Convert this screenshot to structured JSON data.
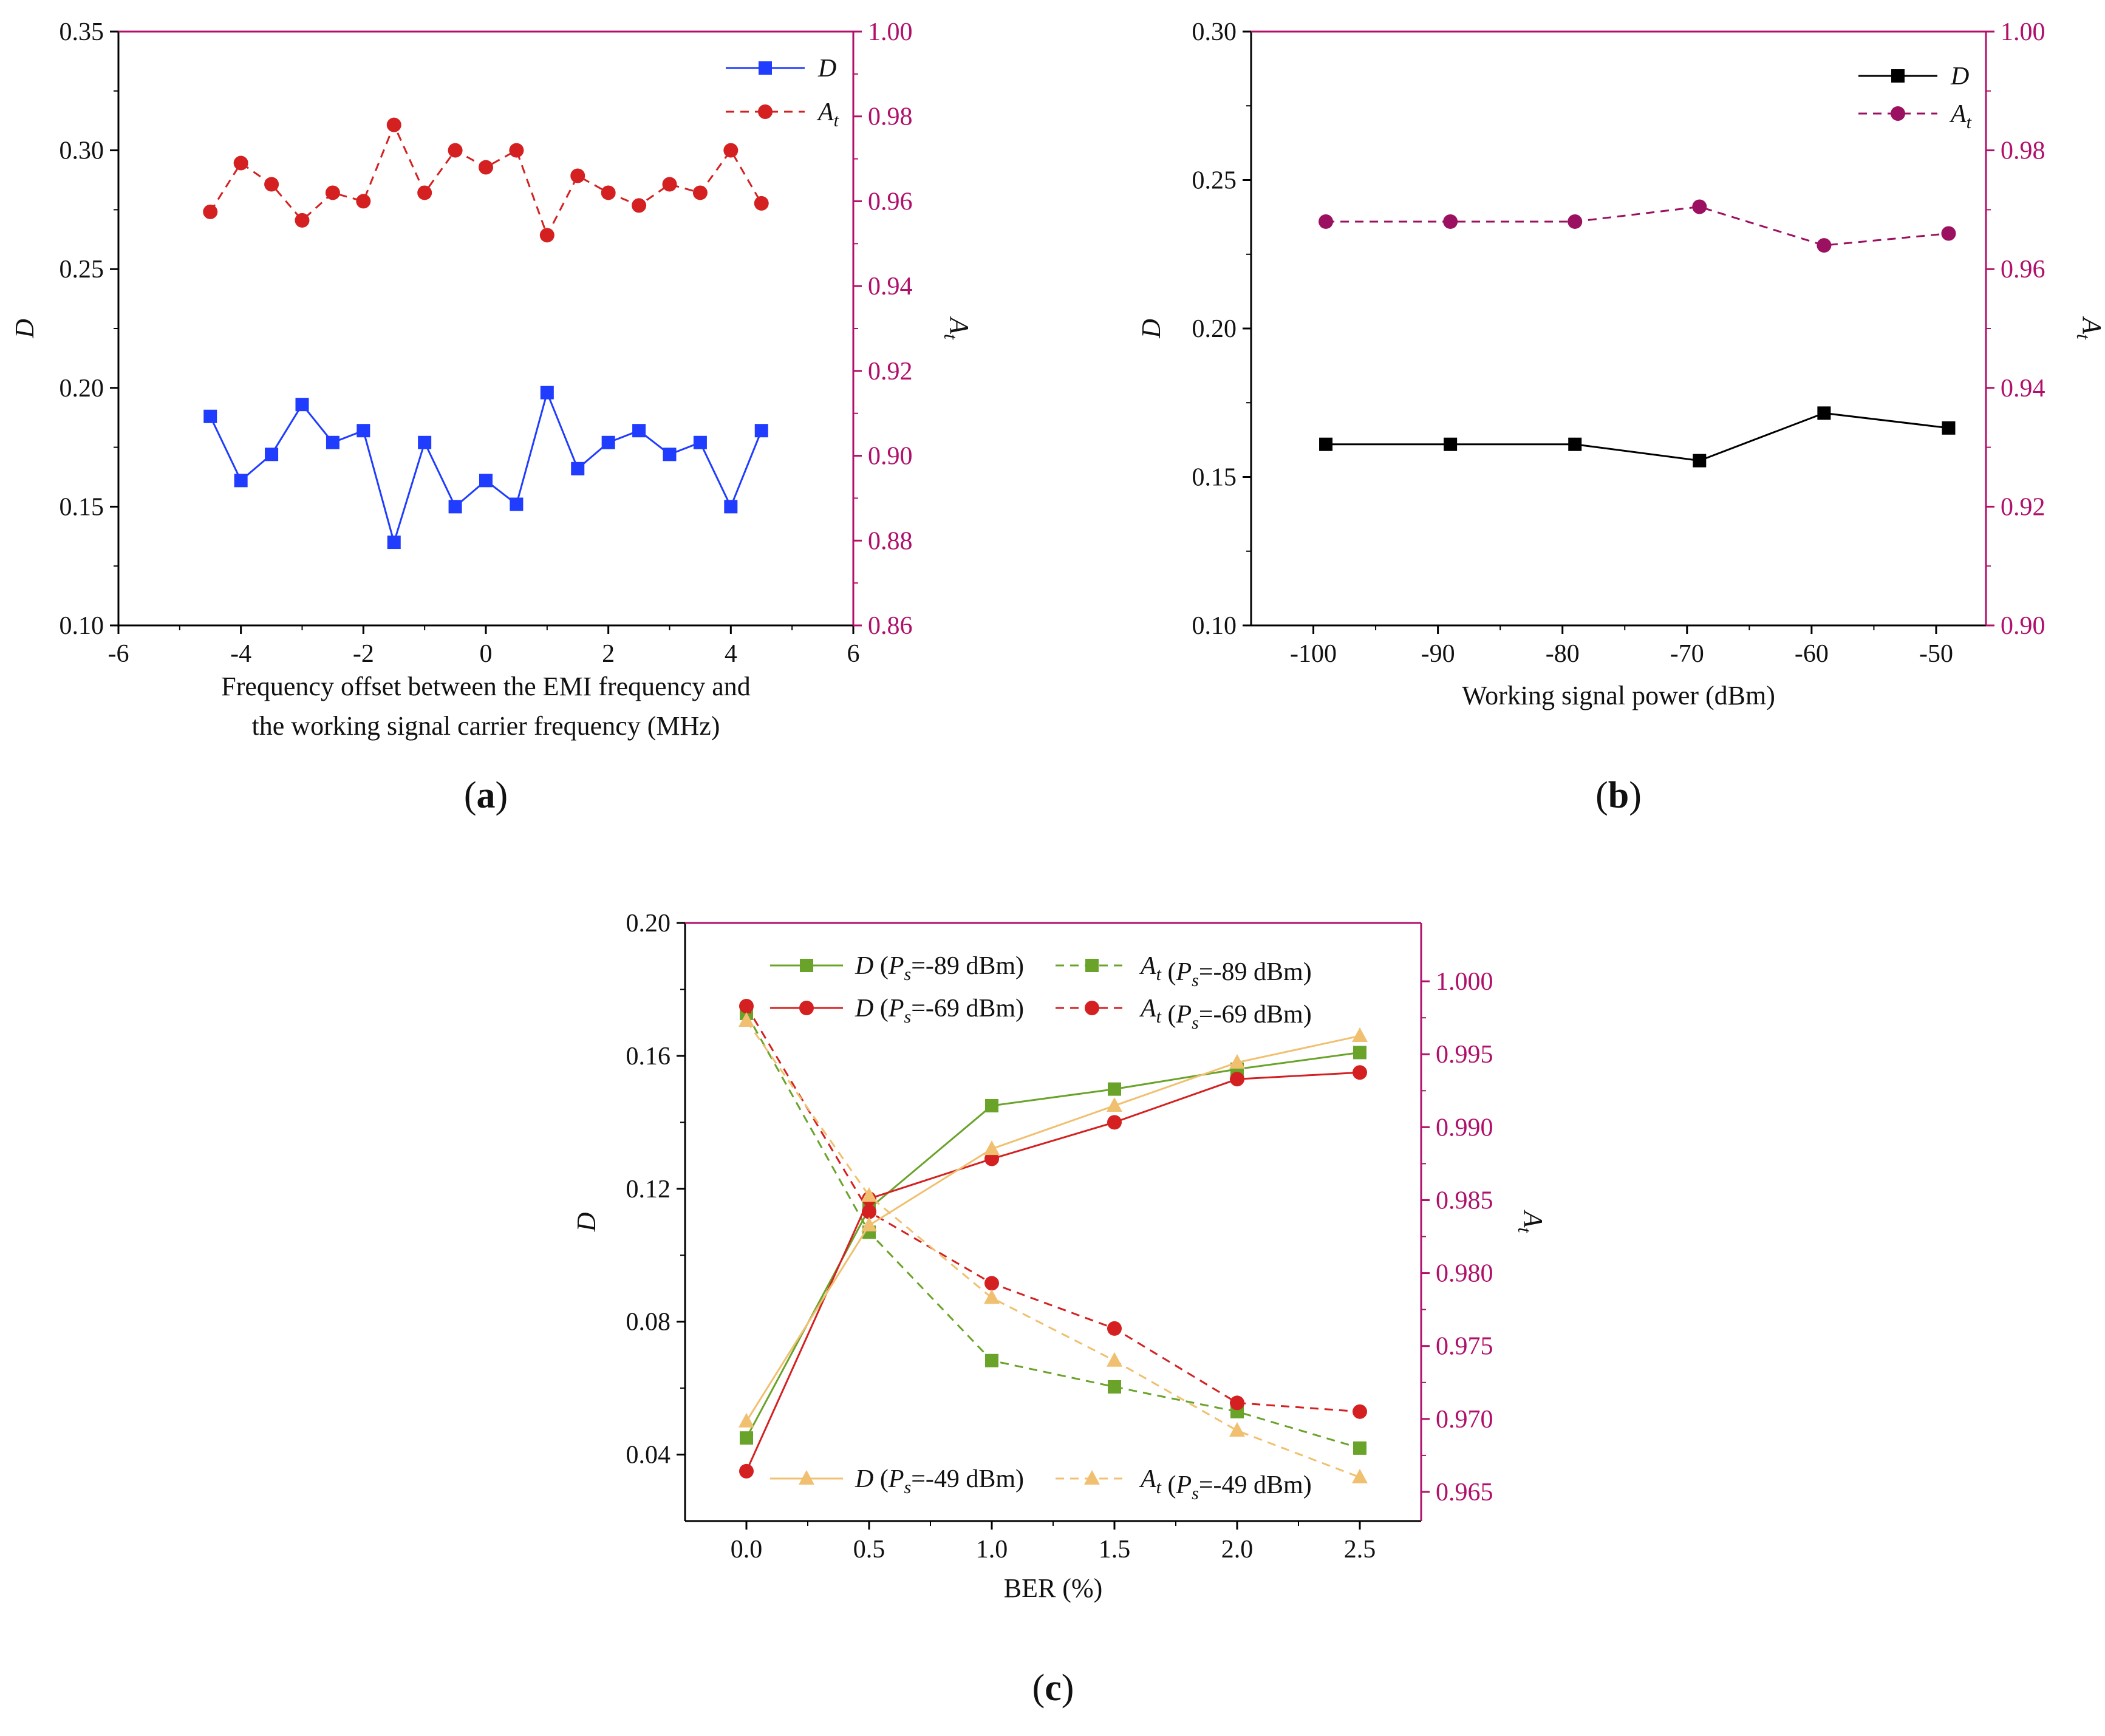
{
  "colors": {
    "left_axis": "#000000",
    "right_axis": "#b0106a",
    "a_D": "#1f3cff",
    "a_At": "#d42020",
    "b_D": "#000000",
    "b_At": "#9b1060",
    "c_green": "#6aa32a",
    "c_red": "#d42020",
    "c_orange": "#f0c070"
  },
  "chart_data": [
    {
      "id": "a",
      "type": "line",
      "caption": "a",
      "xlabel": [
        "Frequency offset between the EMI frequency and",
        "the working signal carrier frequency (MHz)"
      ],
      "ylabel": "D",
      "y2label": "A",
      "y2label_sub": "t",
      "xlim": [
        -6,
        6
      ],
      "xticks": [
        -6,
        -4,
        -2,
        0,
        2,
        4,
        6
      ],
      "xtick_labels": [
        "-6",
        "-4",
        "-2",
        "0",
        "2",
        "4",
        "6"
      ],
      "ylim": [
        0.1,
        0.35
      ],
      "yticks": [
        0.1,
        0.15,
        0.2,
        0.25,
        0.3,
        0.35
      ],
      "ytick_labels": [
        "0.10",
        "0.15",
        "0.20",
        "0.25",
        "0.30",
        "0.35"
      ],
      "y2lim": [
        0.86,
        1.0
      ],
      "y2ticks": [
        0.86,
        0.88,
        0.9,
        0.92,
        0.94,
        0.96,
        0.98,
        1.0
      ],
      "y2tick_labels": [
        "0.86",
        "0.88",
        "0.90",
        "0.92",
        "0.94",
        "0.96",
        "0.98",
        "1.00"
      ],
      "legend_position": "top-right",
      "series": [
        {
          "name": "D",
          "axis": "left",
          "marker": "square",
          "dash": false,
          "color_key": "a_D",
          "x": [
            -4.5,
            -4,
            -3.5,
            -3,
            -2.5,
            -2,
            -1.5,
            -1,
            -0.5,
            0,
            0.5,
            1,
            1.5,
            2,
            2.5,
            3,
            3.5,
            4,
            4.5
          ],
          "y": [
            0.188,
            0.161,
            0.172,
            0.193,
            0.177,
            0.182,
            0.135,
            0.177,
            0.15,
            0.161,
            0.151,
            0.198,
            0.166,
            0.177,
            0.182,
            0.172,
            0.177,
            0.15,
            0.182
          ]
        },
        {
          "name": "A",
          "sub": "t",
          "axis": "right",
          "marker": "circle",
          "dash": true,
          "color_key": "a_At",
          "x": [
            -4.5,
            -4,
            -3.5,
            -3,
            -2.5,
            -2,
            -1.5,
            -1,
            -0.5,
            0,
            0.5,
            1,
            1.5,
            2,
            2.5,
            3,
            3.5,
            4,
            4.5
          ],
          "y": [
            0.9575,
            0.969,
            0.964,
            0.9555,
            0.962,
            0.96,
            0.978,
            0.962,
            0.972,
            0.968,
            0.972,
            0.952,
            0.966,
            0.962,
            0.959,
            0.964,
            0.962,
            0.972,
            0.9595
          ]
        }
      ]
    },
    {
      "id": "b",
      "type": "line",
      "caption": "b",
      "xlabel": [
        "Working signal power (dBm)"
      ],
      "ylabel": "D",
      "y2label": "A",
      "y2label_sub": "t",
      "xlim": [
        -105,
        -46
      ],
      "xticks": [
        -100,
        -90,
        -80,
        -70,
        -60,
        -50
      ],
      "xtick_labels": [
        "-100",
        "-90",
        "-80",
        "-70",
        "-60",
        "-50"
      ],
      "ylim": [
        0.1,
        0.3
      ],
      "yticks": [
        0.1,
        0.15,
        0.2,
        0.25,
        0.3
      ],
      "ytick_labels": [
        "0.10",
        "0.15",
        "0.20",
        "0.25",
        "0.30"
      ],
      "y2lim": [
        0.9,
        1.0
      ],
      "y2ticks": [
        0.9,
        0.92,
        0.94,
        0.96,
        0.98,
        1.0
      ],
      "y2tick_labels": [
        "0.90",
        "0.92",
        "0.94",
        "0.96",
        "0.98",
        "1.00"
      ],
      "legend_position": "top-right",
      "series": [
        {
          "name": "D",
          "axis": "left",
          "marker": "square",
          "dash": false,
          "color_key": "b_D",
          "x": [
            -99,
            -89,
            -79,
            -69,
            -59,
            -49
          ],
          "y": [
            0.161,
            0.161,
            0.161,
            0.1555,
            0.1715,
            0.1665
          ]
        },
        {
          "name": "A",
          "sub": "t",
          "axis": "right",
          "marker": "circle",
          "dash": true,
          "color_key": "b_At",
          "x": [
            -99,
            -89,
            -79,
            -69,
            -59,
            -49
          ],
          "y": [
            0.968,
            0.968,
            0.968,
            0.9705,
            0.964,
            0.966
          ]
        }
      ]
    },
    {
      "id": "c",
      "type": "line",
      "caption": "c",
      "xlabel": [
        "BER (%)"
      ],
      "ylabel": "D",
      "y2label": "A",
      "y2label_sub": "t",
      "xlim": [
        -0.25,
        2.75
      ],
      "xticks": [
        0.0,
        0.5,
        1.0,
        1.5,
        2.0,
        2.5
      ],
      "xtick_labels": [
        "0.0",
        "0.5",
        "1.0",
        "1.5",
        "2.0",
        "2.5"
      ],
      "ylim": [
        0.02,
        0.2
      ],
      "yticks": [
        0.04,
        0.08,
        0.12,
        0.16,
        0.2
      ],
      "ytick_labels": [
        "0.04",
        "0.08",
        "0.12",
        "0.16",
        "0.20"
      ],
      "y2lim": [
        0.963,
        1.004
      ],
      "y2ticks": [
        0.965,
        0.97,
        0.975,
        0.98,
        0.985,
        0.99,
        0.995,
        1.0
      ],
      "y2tick_labels": [
        "0.965",
        "0.970",
        "0.975",
        "0.980",
        "0.985",
        "0.990",
        "0.995",
        "1.000"
      ],
      "legend_position": "top and bottom",
      "series": [
        {
          "name": "D",
          "ps": "-89 dBm",
          "axis": "left",
          "marker": "square",
          "dash": false,
          "color_key": "c_green",
          "x": [
            0,
            0.5,
            1.0,
            1.5,
            2.0,
            2.5
          ],
          "y": [
            0.045,
            0.114,
            0.145,
            0.15,
            0.156,
            0.161
          ]
        },
        {
          "name": "A",
          "sub": "t",
          "ps": "-89 dBm",
          "axis": "right",
          "marker": "square",
          "dash": true,
          "color_key": "c_green",
          "x": [
            0,
            0.5,
            1.0,
            1.5,
            2.0,
            2.5
          ],
          "y": [
            0.9978,
            0.9828,
            0.974,
            0.9722,
            0.9705,
            0.968
          ]
        },
        {
          "name": "D",
          "ps": "-69 dBm",
          "axis": "left",
          "marker": "circle",
          "dash": false,
          "color_key": "c_red",
          "x": [
            0,
            0.5,
            1.0,
            1.5,
            2.0,
            2.5
          ],
          "y": [
            0.035,
            0.117,
            0.129,
            0.14,
            0.153,
            0.155
          ]
        },
        {
          "name": "A",
          "sub": "t",
          "ps": "-69 dBm",
          "axis": "right",
          "marker": "circle",
          "dash": true,
          "color_key": "c_red",
          "x": [
            0,
            0.5,
            1.0,
            1.5,
            2.0,
            2.5
          ],
          "y": [
            0.9983,
            0.9842,
            0.9793,
            0.9762,
            0.9711,
            0.9705
          ]
        },
        {
          "name": "D",
          "ps": "-49 dBm",
          "axis": "left",
          "marker": "triangle",
          "dash": false,
          "color_key": "c_orange",
          "x": [
            0,
            0.5,
            1.0,
            1.5,
            2.0,
            2.5
          ],
          "y": [
            0.05,
            0.109,
            0.132,
            0.145,
            0.158,
            0.166
          ]
        },
        {
          "name": "A",
          "sub": "t",
          "ps": "-49 dBm",
          "axis": "right",
          "marker": "triangle",
          "dash": true,
          "color_key": "c_orange",
          "x": [
            0,
            0.5,
            1.0,
            1.5,
            2.0,
            2.5
          ],
          "y": [
            0.9973,
            0.9853,
            0.9783,
            0.974,
            0.9692,
            0.966
          ]
        }
      ]
    }
  ]
}
